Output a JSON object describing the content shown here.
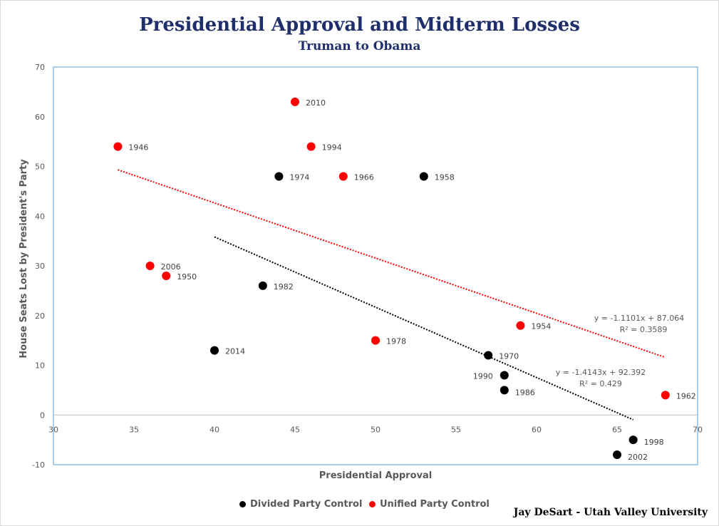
{
  "chart_data": {
    "type": "scatter",
    "title": "Presidential Approval and Midterm Losses",
    "subtitle": "Truman to Obama",
    "xlabel": "Presidential Approval",
    "ylabel": "House Seats Lost by President's Party",
    "xlim": [
      30,
      70
    ],
    "ylim": [
      -10,
      70
    ],
    "xticks": [
      30,
      35,
      40,
      45,
      50,
      55,
      60,
      65,
      70
    ],
    "yticks": [
      -10,
      0,
      10,
      20,
      30,
      40,
      50,
      60,
      70
    ],
    "grid": false,
    "legend_position": "bottom",
    "series": [
      {
        "name": "Divided Party Control",
        "color": "#000000",
        "points": [
          {
            "label": "1974",
            "x": 44,
            "y": 48
          },
          {
            "label": "1958",
            "x": 53,
            "y": 48
          },
          {
            "label": "1982",
            "x": 43,
            "y": 26
          },
          {
            "label": "2014",
            "x": 40,
            "y": 13
          },
          {
            "label": "1970",
            "x": 57,
            "y": 12
          },
          {
            "label": "1990",
            "x": 58,
            "y": 8
          },
          {
            "label": "1986",
            "x": 58,
            "y": 5
          },
          {
            "label": "1998",
            "x": 66,
            "y": -5
          },
          {
            "label": "2002",
            "x": 65,
            "y": -8
          }
        ],
        "trendline": {
          "slope": -1.4143,
          "intercept": 92.392,
          "x_range": [
            40,
            66
          ],
          "equation": "y = -1.4143x + 92.392",
          "r2": "R² = 0.429"
        }
      },
      {
        "name": "Unified Party Control",
        "color": "#ff0000",
        "points": [
          {
            "label": "1946",
            "x": 34,
            "y": 54
          },
          {
            "label": "2010",
            "x": 45,
            "y": 63
          },
          {
            "label": "1994",
            "x": 46,
            "y": 54
          },
          {
            "label": "1966",
            "x": 48,
            "y": 48
          },
          {
            "label": "2006",
            "x": 36,
            "y": 30
          },
          {
            "label": "1950",
            "x": 37,
            "y": 28
          },
          {
            "label": "1978",
            "x": 50,
            "y": 15
          },
          {
            "label": "1954",
            "x": 59,
            "y": 18
          },
          {
            "label": "1962",
            "x": 68,
            "y": 4
          }
        ],
        "trendline": {
          "slope": -1.1101,
          "intercept": 87.064,
          "x_range": [
            34,
            68
          ],
          "equation": "y = -1.1101x + 87.064",
          "r2": "R² = 0.3589"
        }
      }
    ]
  },
  "credit": "Jay DeSart - Utah Valley University"
}
